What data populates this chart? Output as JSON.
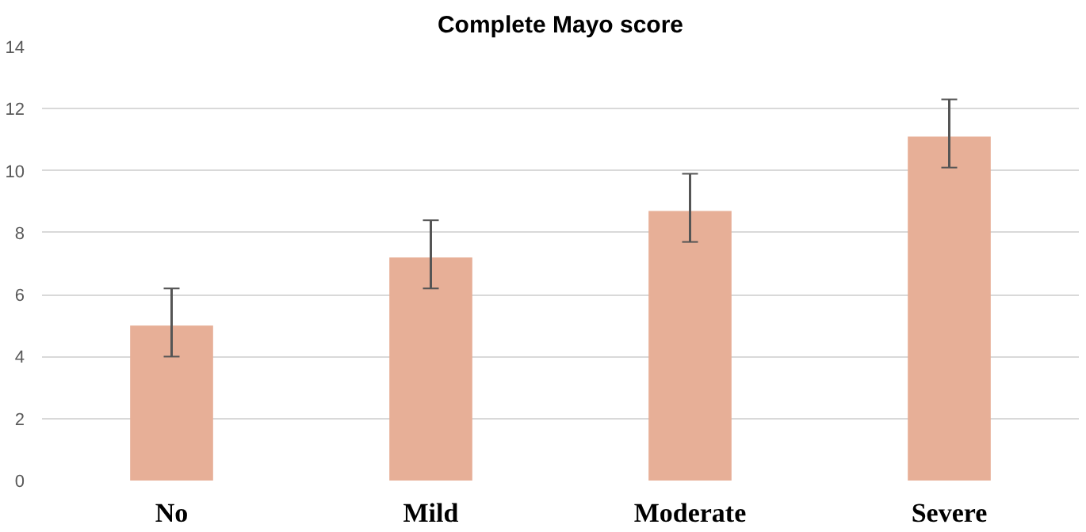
{
  "chart_data": {
    "type": "bar",
    "title": "Complete Mayo score",
    "categories": [
      "No",
      "Mild",
      "Moderate",
      "Severe"
    ],
    "values": [
      5.0,
      7.2,
      8.7,
      11.1
    ],
    "errors": [
      [
        4.0,
        6.2
      ],
      [
        6.2,
        8.4
      ],
      [
        7.7,
        9.9
      ],
      [
        10.1,
        12.3
      ]
    ],
    "color": "#e7af97",
    "ylim": [
      0,
      14
    ],
    "yticks": [
      0,
      2,
      4,
      6,
      8,
      10,
      12,
      14
    ],
    "grid": "y"
  }
}
